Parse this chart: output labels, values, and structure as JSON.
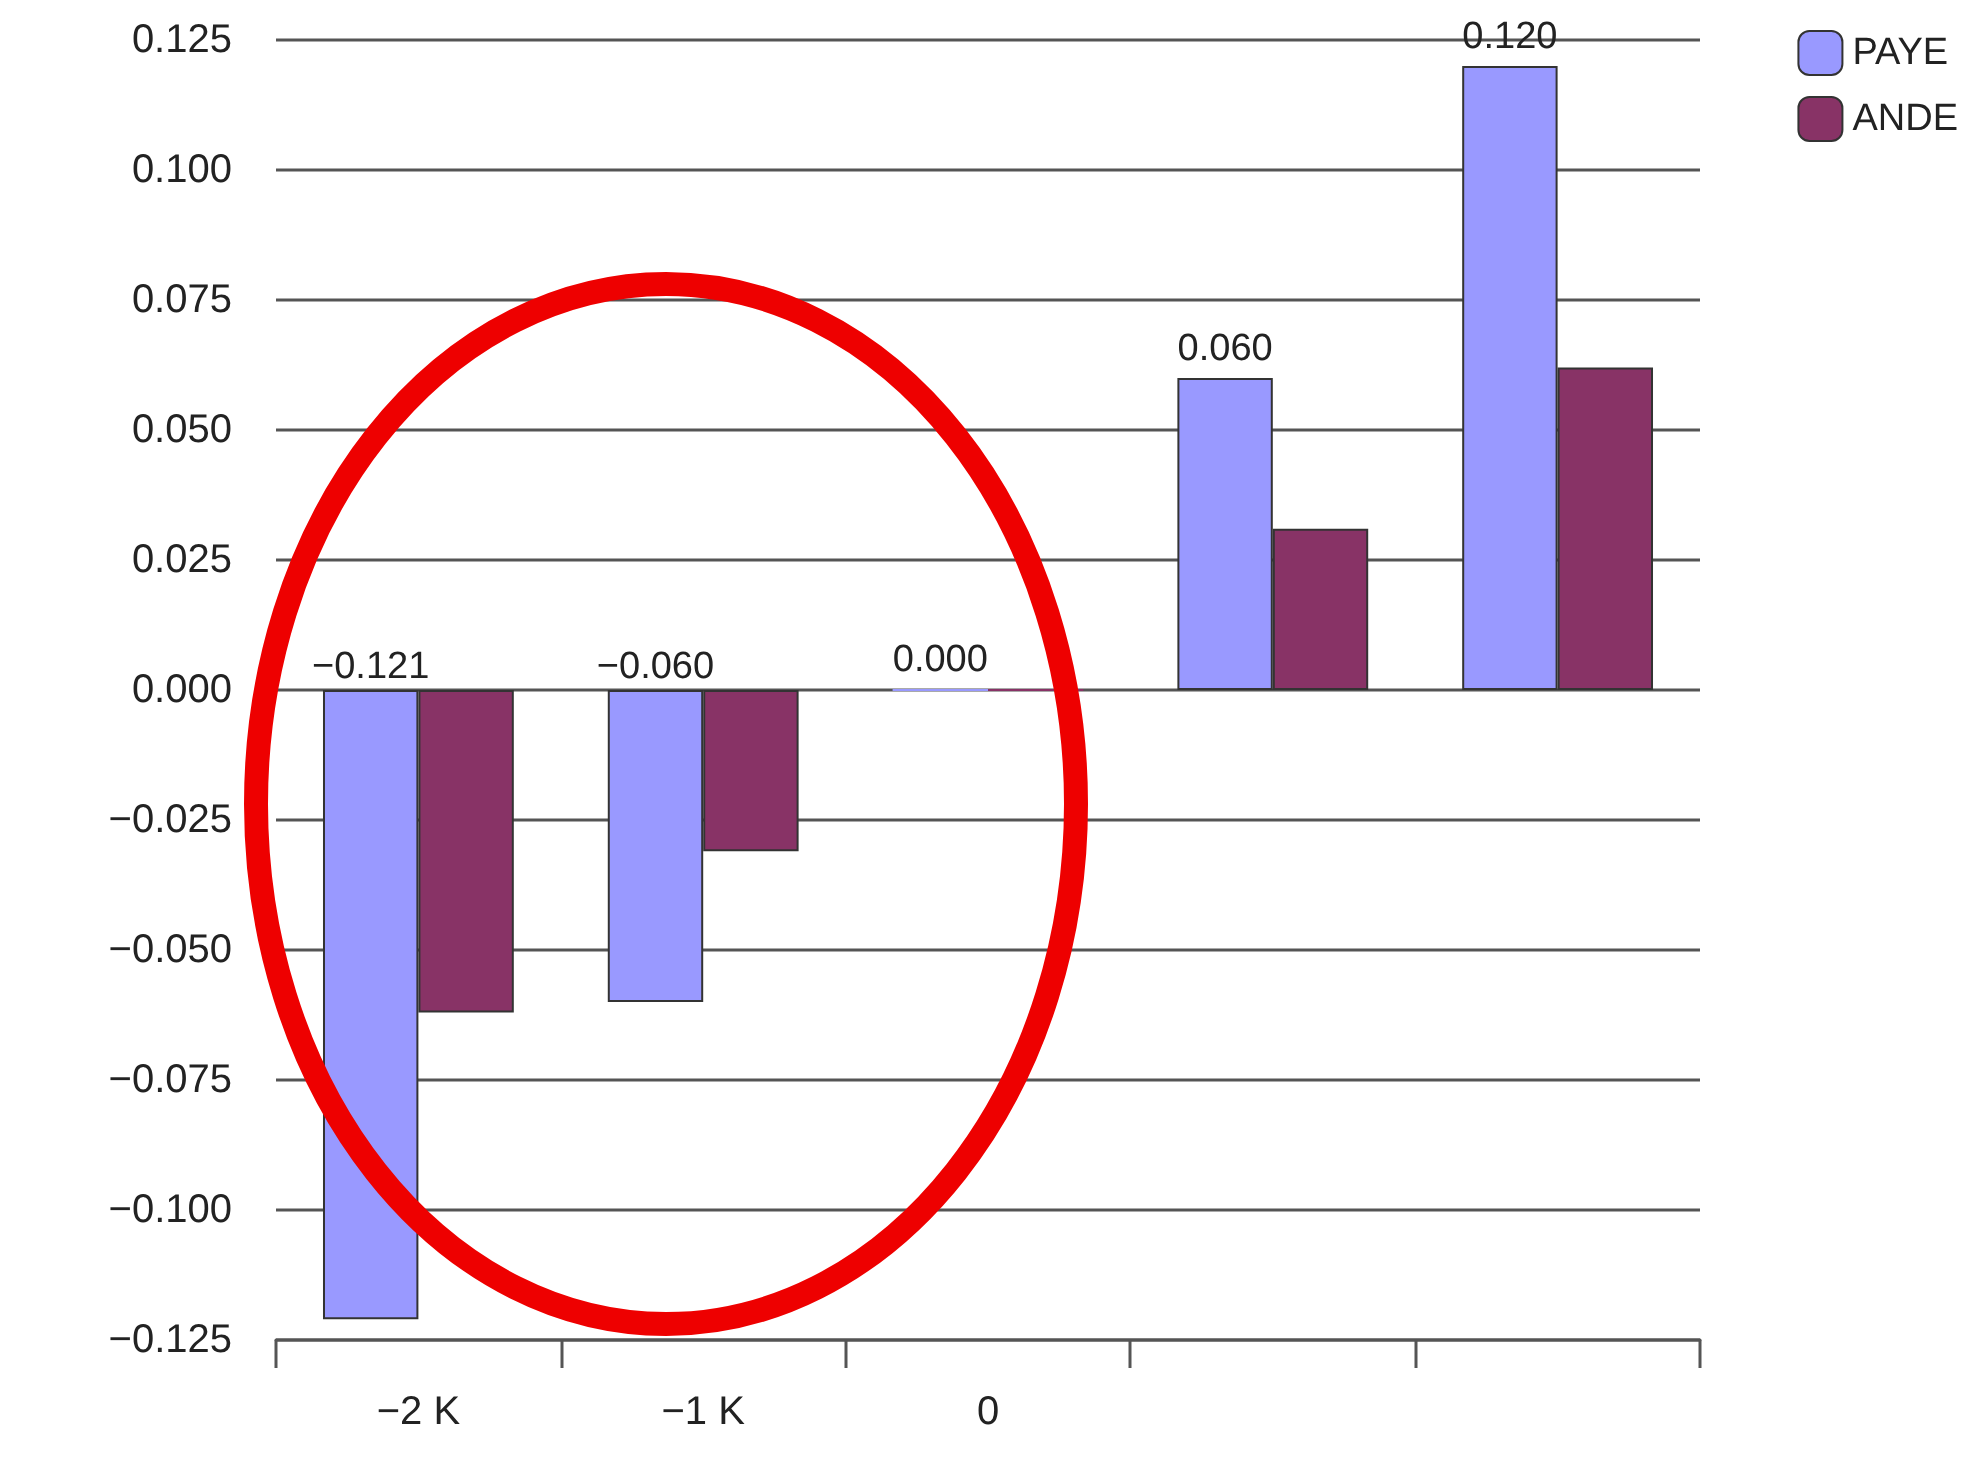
{
  "chart_data": {
    "type": "bar",
    "categories": [
      "−2 K",
      "−1 K",
      "0",
      null,
      null
    ],
    "series": [
      {
        "name": "PAYE",
        "color": "#9999ff",
        "values": [
          -0.121,
          -0.06,
          0.0,
          0.06,
          0.12
        ],
        "value_labels": [
          "−0.121",
          "−0.060",
          "0.000",
          "0.060",
          "0.120"
        ]
      },
      {
        "name": "ANDE",
        "color": "#883366",
        "values": [
          -0.062,
          -0.031,
          0.0,
          0.031,
          0.062
        ]
      }
    ],
    "ylim": [
      -0.125,
      0.125
    ],
    "yticks": [
      {
        "value": -0.125,
        "label": "−0.125"
      },
      {
        "value": -0.1,
        "label": "−0.100"
      },
      {
        "value": -0.075,
        "label": "−0.075"
      },
      {
        "value": -0.05,
        "label": "−0.050"
      },
      {
        "value": -0.025,
        "label": "−0.025"
      },
      {
        "value": 0,
        "label": "0.000"
      },
      {
        "value": 0.025,
        "label": "0.025"
      },
      {
        "value": 0.05,
        "label": "0.050"
      },
      {
        "value": 0.075,
        "label": "0.075"
      },
      {
        "value": 0.1,
        "label": "0.100"
      },
      {
        "value": 0.125,
        "label": "0.125"
      }
    ],
    "grid": "y",
    "legend": "top right"
  }
}
